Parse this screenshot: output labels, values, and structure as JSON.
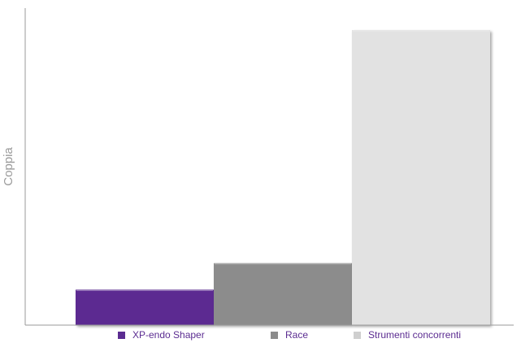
{
  "chart_data": {
    "type": "bar",
    "ylabel": "Coppia",
    "xlabel": "",
    "categories": [
      "XP-endo Shaper",
      "Race",
      "Strumenti concorrenti"
    ],
    "values": [
      12,
      21,
      100
    ],
    "ylim": [
      0,
      100
    ],
    "grid": false,
    "legend_placement": "bottom",
    "colors": [
      "#5b2c91",
      "#8c8c8c",
      "#e2e2e2"
    ],
    "legend_text_color": "#5b2c91",
    "axis_color": "#9a9a9a",
    "ylabel_color": "#9a9a9a"
  }
}
